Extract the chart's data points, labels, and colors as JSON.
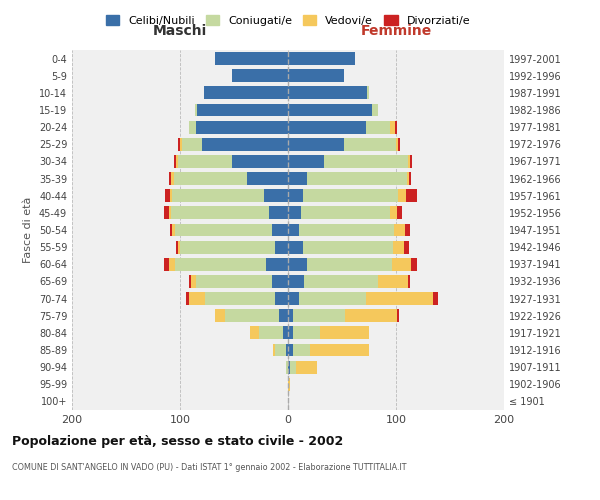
{
  "age_groups": [
    "100+",
    "95-99",
    "90-94",
    "85-89",
    "80-84",
    "75-79",
    "70-74",
    "65-69",
    "60-64",
    "55-59",
    "50-54",
    "45-49",
    "40-44",
    "35-39",
    "30-34",
    "25-29",
    "20-24",
    "15-19",
    "10-14",
    "5-9",
    "0-4"
  ],
  "birth_years": [
    "≤ 1901",
    "1902-1906",
    "1907-1911",
    "1912-1916",
    "1917-1921",
    "1922-1926",
    "1927-1931",
    "1932-1936",
    "1937-1941",
    "1942-1946",
    "1947-1951",
    "1952-1956",
    "1957-1961",
    "1962-1966",
    "1967-1971",
    "1972-1976",
    "1977-1981",
    "1982-1986",
    "1987-1991",
    "1992-1996",
    "1997-2001"
  ],
  "maschi": {
    "celibi": [
      0,
      0,
      0,
      2,
      5,
      8,
      12,
      15,
      20,
      12,
      15,
      18,
      22,
      38,
      52,
      80,
      85,
      84,
      78,
      52,
      68
    ],
    "coniugati": [
      0,
      0,
      2,
      10,
      22,
      50,
      65,
      70,
      85,
      88,
      90,
      90,
      85,
      68,
      50,
      18,
      7,
      2,
      0,
      0,
      0
    ],
    "vedovi": [
      0,
      0,
      0,
      2,
      8,
      10,
      15,
      5,
      5,
      2,
      2,
      2,
      2,
      2,
      2,
      2,
      0,
      0,
      0,
      0,
      0
    ],
    "divorziati": [
      0,
      0,
      0,
      0,
      0,
      0,
      2,
      2,
      5,
      2,
      2,
      5,
      5,
      2,
      2,
      2,
      0,
      0,
      0,
      0,
      0
    ]
  },
  "femmine": {
    "nubili": [
      0,
      0,
      2,
      5,
      5,
      5,
      10,
      15,
      18,
      14,
      10,
      12,
      14,
      18,
      33,
      52,
      72,
      78,
      73,
      52,
      62
    ],
    "coniugate": [
      0,
      0,
      5,
      15,
      25,
      48,
      62,
      68,
      78,
      83,
      88,
      82,
      88,
      92,
      78,
      48,
      22,
      5,
      2,
      0,
      0
    ],
    "vedove": [
      0,
      2,
      20,
      55,
      45,
      48,
      62,
      28,
      18,
      10,
      10,
      7,
      7,
      2,
      2,
      2,
      5,
      0,
      0,
      0,
      0
    ],
    "divorziate": [
      0,
      0,
      0,
      0,
      0,
      2,
      5,
      2,
      5,
      5,
      5,
      5,
      10,
      2,
      2,
      2,
      2,
      0,
      0,
      0,
      0
    ]
  },
  "colors": {
    "celibi_nubili": "#3A6FA8",
    "coniugati": "#C5D9A0",
    "vedovi": "#F5C85C",
    "divorziati": "#CC2222"
  },
  "xlim": 200,
  "title": "Popolazione per età, sesso e stato civile - 2002",
  "subtitle": "COMUNE DI SANT'ANGELO IN VADO (PU) - Dati ISTAT 1° gennaio 2002 - Elaborazione TUTTITALIA.IT",
  "ylabel_left": "Fasce di età",
  "xlabel_maschi": "Maschi",
  "xlabel_femmine": "Femmine",
  "legend_labels": [
    "Celibi/Nubili",
    "Coniugati/e",
    "Vedovi/e",
    "Divorziati/e"
  ],
  "bg_color": "#f0f0f0"
}
